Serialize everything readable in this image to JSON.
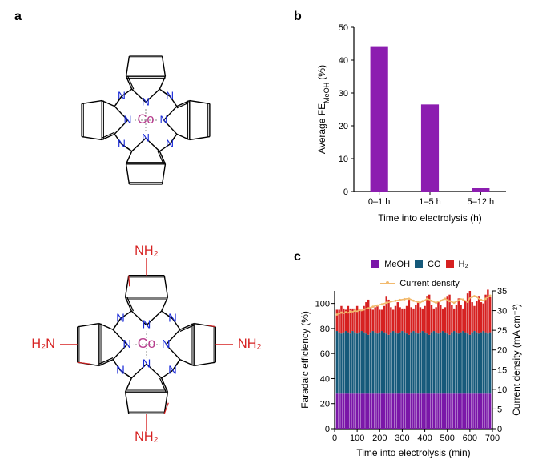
{
  "panels": {
    "a_label": "a",
    "b_label": "b",
    "c_label": "c"
  },
  "panel_a": {
    "description": "Two cobalt phthalocyanine molecular structures",
    "top_molecule": "Cobalt phthalocyanine (CoPc)",
    "bottom_molecule": "Tetra-amino cobalt phthalocyanine (CoPc-NH2)",
    "center_atom": "Co",
    "nitrogen_label": "N",
    "amine_label": "NH₂",
    "amine_label_left": "H₂N",
    "colors": {
      "carbon": "#000000",
      "nitrogen": "#1a2bd8",
      "cobalt": "#b83d8e",
      "amine": "#d62020",
      "dash": "#888888"
    }
  },
  "panel_b": {
    "type": "bar",
    "title_y": "Average FE",
    "title_y_sub": "MeOH",
    "title_y_suffix": " (%)",
    "title_x": "Time into electrolysis (h)",
    "categories": [
      "0–1 h",
      "1–5 h",
      "5–12 h"
    ],
    "values": [
      44,
      26.5,
      1
    ],
    "bar_color": "#8c1db0",
    "ylim": [
      0,
      50
    ],
    "ytick_step": 10,
    "axis_color": "#000000",
    "label_fontsize": 12,
    "tick_fontsize": 11,
    "bar_width": 0.35
  },
  "panel_c": {
    "type": "stacked-bar-with-line",
    "title_y_left": "Faradaic efficiency (%)",
    "title_y_right": "Current density (mA cm⁻²)",
    "title_x": "Time into electrolysis (min)",
    "legend_labels": {
      "meoh": "MeOH",
      "co": "CO",
      "h2": "H₂",
      "current": "Current density"
    },
    "colors": {
      "meoh": "#7a16a8",
      "co": "#15597a",
      "h2": "#d62020",
      "current": "#f2ba6e",
      "axis": "#000000"
    },
    "xlim": [
      0,
      700
    ],
    "xtick_step": 100,
    "ylim_left": [
      0,
      110
    ],
    "ytick_step_left": 20,
    "ylim_right": [
      0,
      35
    ],
    "ytick_step_right": 5,
    "time_points": [
      10,
      20,
      30,
      40,
      50,
      60,
      70,
      80,
      90,
      100,
      110,
      120,
      130,
      140,
      150,
      160,
      170,
      180,
      190,
      200,
      210,
      220,
      230,
      240,
      250,
      260,
      270,
      280,
      290,
      300,
      310,
      320,
      330,
      340,
      350,
      360,
      370,
      380,
      390,
      400,
      410,
      420,
      430,
      440,
      450,
      460,
      470,
      480,
      490,
      500,
      510,
      520,
      530,
      540,
      550,
      560,
      570,
      580,
      590,
      600,
      610,
      620,
      630,
      640,
      650,
      660,
      670,
      680,
      690
    ],
    "meoh_values": [
      28,
      28,
      28,
      28,
      28,
      28,
      28,
      28,
      28,
      28,
      28,
      28,
      28,
      28,
      28,
      28,
      28,
      28,
      28,
      28,
      28,
      28,
      28,
      28,
      28,
      28,
      28,
      28,
      28,
      28,
      28,
      28,
      28,
      28,
      28,
      28,
      28,
      28,
      28,
      28,
      28,
      28,
      28,
      28,
      28,
      28,
      28,
      28,
      28,
      28,
      28,
      28,
      28,
      28,
      28,
      28,
      28,
      28,
      28,
      28,
      28,
      28,
      28,
      28,
      28,
      28,
      28,
      28,
      28
    ],
    "co_values": [
      50,
      49,
      48,
      49,
      50,
      49,
      48,
      50,
      49,
      48,
      49,
      50,
      49,
      48,
      47,
      49,
      50,
      49,
      48,
      49,
      50,
      49,
      48,
      47,
      49,
      50,
      49,
      48,
      49,
      50,
      49,
      48,
      47,
      49,
      50,
      49,
      48,
      49,
      50,
      49,
      48,
      47,
      49,
      50,
      49,
      48,
      49,
      50,
      49,
      48,
      47,
      49,
      50,
      49,
      48,
      49,
      50,
      49,
      48,
      47,
      49,
      50,
      49,
      48,
      49,
      50,
      49,
      48,
      49
    ],
    "h2_values": [
      17,
      18,
      22,
      19,
      17,
      21,
      20,
      18,
      19,
      22,
      18,
      17,
      21,
      25,
      28,
      20,
      17,
      20,
      22,
      18,
      17,
      21,
      30,
      28,
      20,
      17,
      21,
      25,
      20,
      18,
      19,
      22,
      28,
      20,
      18,
      22,
      25,
      20,
      18,
      21,
      30,
      32,
      22,
      18,
      20,
      25,
      22,
      18,
      20,
      30,
      32,
      22,
      18,
      22,
      28,
      22,
      18,
      25,
      32,
      35,
      24,
      20,
      25,
      30,
      24,
      22,
      30,
      35,
      28
    ],
    "current_density": [
      29,
      29.2,
      29.5,
      29.3,
      29.6,
      29.4,
      29.8,
      29.7,
      30,
      29.8,
      30.2,
      30,
      30.3,
      30.5,
      30.6,
      30.8,
      31,
      31.2,
      31.3,
      31.5,
      31.6,
      31.8,
      32,
      32.1,
      32.3,
      32.4,
      32.5,
      32.6,
      32.7,
      32.8,
      32.9,
      33,
      33,
      32.8,
      32.5,
      32.3,
      32.2,
      32,
      32.4,
      32.6,
      33,
      32.8,
      32.5,
      32.2,
      32,
      32.3,
      32.5,
      32.8,
      33,
      32.7,
      32.4,
      32.2,
      32,
      32.3,
      32.6,
      33,
      32.8,
      32.5,
      32.2,
      33.2,
      33.5,
      33.8,
      33.5,
      33,
      32.7,
      32.5,
      33,
      33.5,
      33.8
    ],
    "label_fontsize": 12,
    "tick_fontsize": 11
  }
}
